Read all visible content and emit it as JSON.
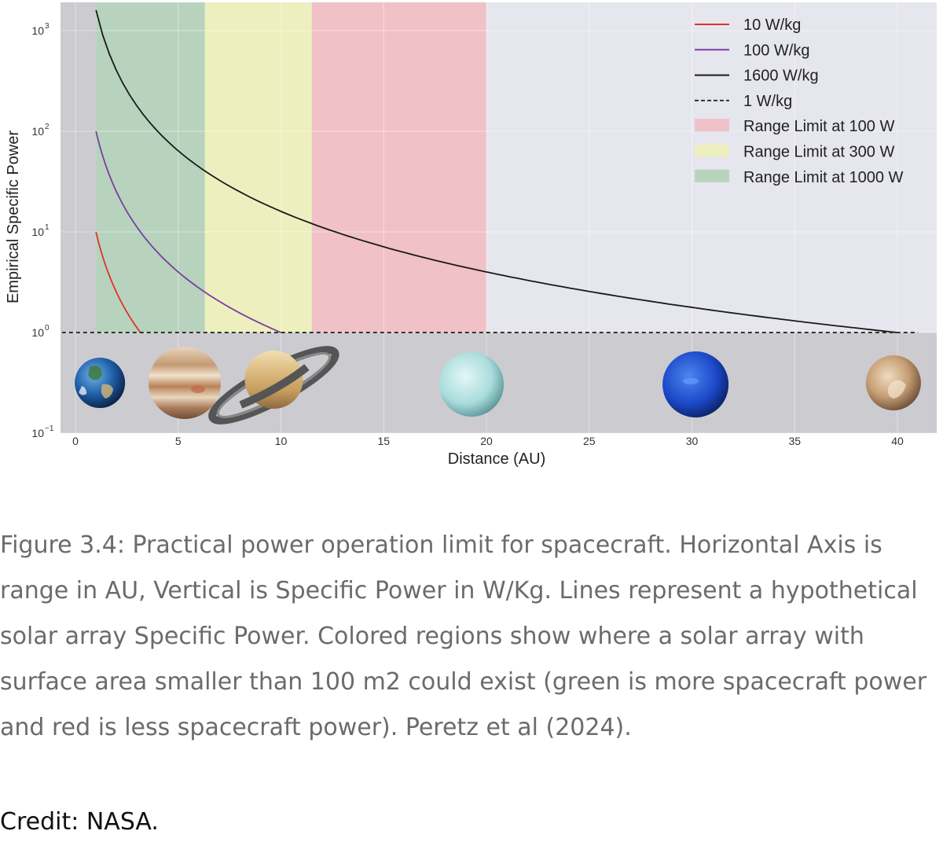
{
  "chart_data": {
    "type": "line",
    "xlabel": "Distance (AU)",
    "ylabel": "Empirical Specific Power",
    "xlim": [
      -1,
      41
    ],
    "ylim_log10": [
      -1,
      3.3
    ],
    "y_scale": "log",
    "grid": true,
    "legend_placement": "top-right",
    "x_ticks": [
      {
        "value": 0,
        "label": "0"
      },
      {
        "value": 5,
        "label": "5"
      },
      {
        "value": 10,
        "label": "10"
      },
      {
        "value": 15,
        "label": "15"
      },
      {
        "value": 20,
        "label": "20"
      },
      {
        "value": 25,
        "label": "25"
      },
      {
        "value": 30,
        "label": "30"
      },
      {
        "value": 35,
        "label": "35"
      },
      {
        "value": 40,
        "label": "40"
      }
    ],
    "y_ticks": [
      {
        "exp": 3,
        "base": "10",
        "sup": "3"
      },
      {
        "exp": 2,
        "base": "10",
        "sup": "2"
      },
      {
        "exp": 1,
        "base": "10",
        "sup": "1"
      },
      {
        "exp": 0,
        "base": "10",
        "sup": "0"
      },
      {
        "exp": -1,
        "base": "10",
        "sup": "−1"
      }
    ],
    "regions": [
      {
        "name": "Range Limit at 1000 W",
        "x": [
          1,
          6.3
        ],
        "color": "#b7d3bd"
      },
      {
        "name": "Range Limit at 300 W",
        "x": [
          6.3,
          11.5
        ],
        "color": "#eeefbe"
      },
      {
        "name": "Range Limit at 100 W",
        "x": [
          11.5,
          20
        ],
        "color": "#f0c1c7"
      }
    ],
    "series": [
      {
        "name": "10 W/kg",
        "color": "#e0312b",
        "x": [
          1.0,
          1.2,
          1.4,
          1.6,
          1.8,
          2.0,
          2.2,
          2.4,
          2.6,
          2.8,
          3.0,
          3.16
        ],
        "y": [
          10.0,
          6.94,
          5.1,
          3.91,
          3.09,
          2.5,
          2.07,
          1.74,
          1.48,
          1.28,
          1.11,
          1.0
        ]
      },
      {
        "name": "100 W/kg",
        "color": "#7a3ea0",
        "x": [
          1,
          1.5,
          2,
          2.5,
          3,
          4,
          5,
          6,
          7,
          8,
          9,
          10
        ],
        "y": [
          100,
          44.4,
          25,
          16,
          11.1,
          6.25,
          4,
          2.78,
          2.04,
          1.56,
          1.23,
          1.0
        ]
      },
      {
        "name": "1600 W/kg",
        "color": "#1a1a1a",
        "x": [
          1,
          1.5,
          2,
          3,
          4,
          5,
          6,
          8,
          10,
          12,
          15,
          20,
          25,
          30,
          35,
          40
        ],
        "y": [
          1600,
          711,
          400,
          178,
          100,
          64,
          44.4,
          25,
          16,
          11.1,
          7.11,
          4,
          2.56,
          1.78,
          1.31,
          1.0
        ]
      },
      {
        "name": "1 W/kg",
        "color": "#333333",
        "dashed": true,
        "x": [
          -1,
          41
        ],
        "y": [
          1,
          1
        ]
      }
    ],
    "legend": [
      {
        "label": "10 W/kg",
        "kind": "line",
        "color": "#e0312b"
      },
      {
        "label": "100 W/kg",
        "kind": "line",
        "color": "#7a3ea0"
      },
      {
        "label": "1600 W/kg",
        "kind": "line",
        "color": "#1a1a1a"
      },
      {
        "label": "1 W/kg",
        "kind": "dashed",
        "color": "#333333"
      },
      {
        "label": "Range Limit at 100 W",
        "kind": "patch",
        "color": "#f0c1c7"
      },
      {
        "label": "Range Limit at 300 W",
        "kind": "patch",
        "color": "#eeefbe"
      },
      {
        "label": "Range Limit at 1000 W",
        "kind": "patch",
        "color": "#b7d3bd"
      }
    ],
    "planets": [
      {
        "name": "earth-icon",
        "x": 1
      },
      {
        "name": "jupiter-icon",
        "x": 5.2
      },
      {
        "name": "saturn-icon",
        "x": 9.5
      },
      {
        "name": "uranus-icon",
        "x": 19.2
      },
      {
        "name": "neptune-icon",
        "x": 30.1
      },
      {
        "name": "pluto-icon",
        "x": 39.5
      }
    ],
    "colors": {
      "plot_bg": "#e6e6ee",
      "lower_band": "#cbcbd0",
      "left_band": "#cbcbd0"
    }
  },
  "caption": "Figure 3.4: Practical power operation limit for spacecraft. Horizontal Axis is range in AU, Vertical is Specific Power in W/Kg. Lines represent a hypothetical solar array Specific Power. Colored regions show where a solar array with surface area smaller than 100 m2 could exist (green is more spacecraft power and red is less spacecraft power). Peretz et al (2024).",
  "credit": "Credit: NASA."
}
